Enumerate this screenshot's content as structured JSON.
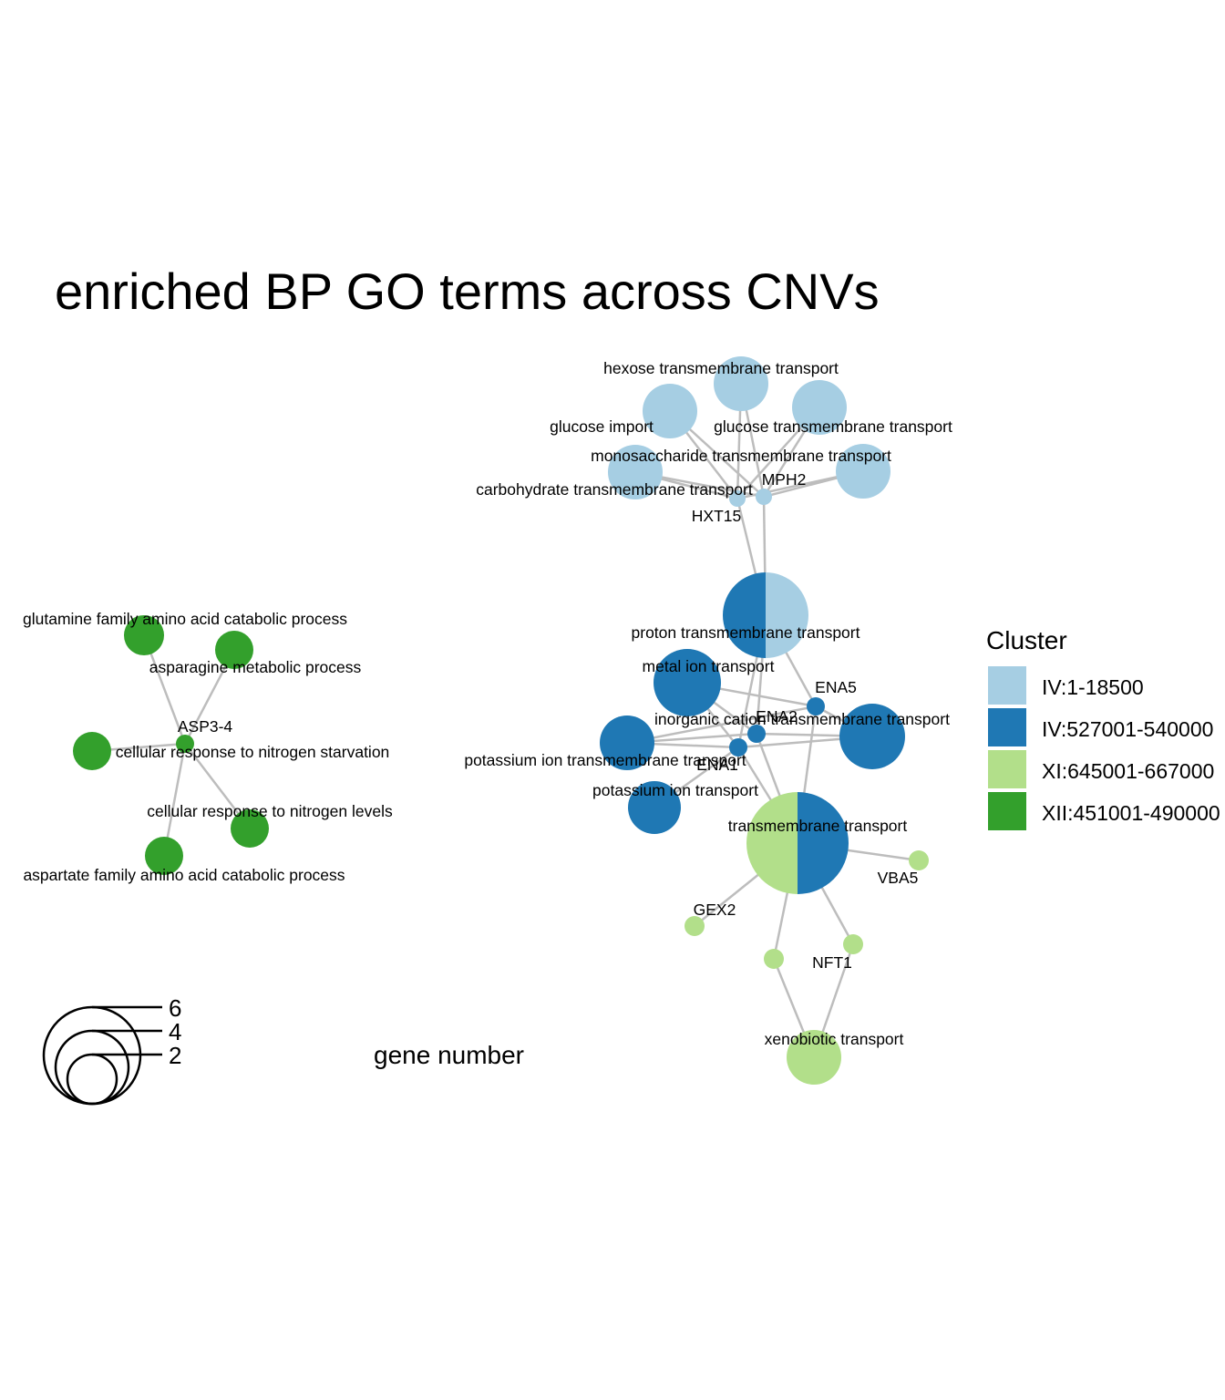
{
  "title": "enriched BP GO terms across CNVs",
  "edge_color": "#bdbdbd",
  "legend": {
    "title": "Cluster",
    "entries": [
      {
        "key": "c1",
        "label": "IV:1-18500",
        "color": "#a6cee3"
      },
      {
        "key": "c2",
        "label": "IV:527001-540000",
        "color": "#1f78b4"
      },
      {
        "key": "c3",
        "label": "XI:645001-667000",
        "color": "#b2df8a"
      },
      {
        "key": "c4",
        "label": "XII:451001-490000",
        "color": "#33a02c"
      }
    ]
  },
  "size_legend": {
    "title": "gene number",
    "values": [
      "6",
      "4",
      "2"
    ]
  },
  "nodes": [
    {
      "id": "hexose",
      "label": "hexose transmembrane transport",
      "kind": "term",
      "clusters": [
        "c1"
      ]
    },
    {
      "id": "glucose_import",
      "label": "glucose import",
      "kind": "term",
      "clusters": [
        "c1"
      ]
    },
    {
      "id": "glucose_tm",
      "label": "glucose transmembrane transport",
      "kind": "term",
      "clusters": [
        "c1"
      ]
    },
    {
      "id": "mono_tm",
      "label": "monosaccharide transmembrane transport",
      "kind": "term",
      "clusters": [
        "c1"
      ]
    },
    {
      "id": "carb_tm",
      "label": "carbohydrate transmembrane transport",
      "kind": "term",
      "clusters": [
        "c1"
      ]
    },
    {
      "id": "HXT15",
      "label": "HXT15",
      "kind": "gene",
      "clusters": [
        "c1"
      ]
    },
    {
      "id": "MPH2",
      "label": "MPH2",
      "kind": "gene",
      "clusters": [
        "c1"
      ]
    },
    {
      "id": "proton",
      "label": "proton transmembrane transport",
      "kind": "term",
      "clusters": [
        "c2",
        "c1"
      ]
    },
    {
      "id": "metal",
      "label": "metal ion transport",
      "kind": "term",
      "clusters": [
        "c2"
      ]
    },
    {
      "id": "ENA5",
      "label": "ENA5",
      "kind": "gene",
      "clusters": [
        "c2"
      ]
    },
    {
      "id": "ENA2",
      "label": "ENA2",
      "kind": "gene",
      "clusters": [
        "c2"
      ]
    },
    {
      "id": "inorganic",
      "label": "inorganic cation transmembrane transport",
      "kind": "term",
      "clusters": [
        "c2"
      ]
    },
    {
      "id": "potassium_tm",
      "label": "potassium ion transmembrane transport",
      "kind": "term",
      "clusters": [
        "c2"
      ]
    },
    {
      "id": "ENA1",
      "label": "ENA1",
      "kind": "gene",
      "clusters": [
        "c2"
      ]
    },
    {
      "id": "potassium",
      "label": "potassium ion transport",
      "kind": "term",
      "clusters": [
        "c2"
      ]
    },
    {
      "id": "transmembrane",
      "label": "transmembrane transport",
      "kind": "term",
      "clusters": [
        "c3",
        "c2"
      ]
    },
    {
      "id": "VBA5",
      "label": "VBA5",
      "kind": "gene",
      "clusters": [
        "c3"
      ]
    },
    {
      "id": "GEX2",
      "label": "GEX2",
      "kind": "gene",
      "clusters": [
        "c3"
      ]
    },
    {
      "id": "NFT1",
      "label": "NFT1",
      "kind": "gene",
      "clusters": [
        "c3"
      ]
    },
    {
      "id": "gene_x",
      "label": "",
      "kind": "gene",
      "clusters": [
        "c3"
      ]
    },
    {
      "id": "xenobiotic",
      "label": "xenobiotic transport",
      "kind": "term",
      "clusters": [
        "c3"
      ]
    },
    {
      "id": "glutamine",
      "label": "glutamine family amino acid catabolic process",
      "kind": "term",
      "clusters": [
        "c4"
      ]
    },
    {
      "id": "asparagine",
      "label": "asparagine metabolic process",
      "kind": "term",
      "clusters": [
        "c4"
      ]
    },
    {
      "id": "ASP34",
      "label": "ASP3-4",
      "kind": "gene",
      "clusters": [
        "c4"
      ]
    },
    {
      "id": "starvation",
      "label": "cellular response to nitrogen starvation",
      "kind": "term",
      "clusters": [
        "c4"
      ]
    },
    {
      "id": "levels",
      "label": "cellular response to nitrogen levels",
      "kind": "term",
      "clusters": [
        "c4"
      ]
    },
    {
      "id": "aspartate",
      "label": "aspartate family amino acid catabolic process",
      "kind": "term",
      "clusters": [
        "c4"
      ]
    }
  ],
  "edges": [
    [
      "hexose",
      "HXT15"
    ],
    [
      "hexose",
      "MPH2"
    ],
    [
      "glucose_import",
      "HXT15"
    ],
    [
      "glucose_import",
      "MPH2"
    ],
    [
      "glucose_tm",
      "HXT15"
    ],
    [
      "glucose_tm",
      "MPH2"
    ],
    [
      "mono_tm",
      "HXT15"
    ],
    [
      "mono_tm",
      "MPH2"
    ],
    [
      "carb_tm",
      "HXT15"
    ],
    [
      "carb_tm",
      "MPH2"
    ],
    [
      "proton",
      "HXT15"
    ],
    [
      "proton",
      "MPH2"
    ],
    [
      "proton",
      "ENA5"
    ],
    [
      "proton",
      "ENA2"
    ],
    [
      "proton",
      "ENA1"
    ],
    [
      "metal",
      "ENA5"
    ],
    [
      "metal",
      "ENA2"
    ],
    [
      "metal",
      "ENA1"
    ],
    [
      "inorganic",
      "ENA5"
    ],
    [
      "inorganic",
      "ENA2"
    ],
    [
      "inorganic",
      "ENA1"
    ],
    [
      "potassium_tm",
      "ENA5"
    ],
    [
      "potassium_tm",
      "ENA2"
    ],
    [
      "potassium_tm",
      "ENA1"
    ],
    [
      "potassium",
      "ENA1"
    ],
    [
      "transmembrane",
      "ENA5"
    ],
    [
      "transmembrane",
      "ENA2"
    ],
    [
      "transmembrane",
      "ENA1"
    ],
    [
      "transmembrane",
      "VBA5"
    ],
    [
      "transmembrane",
      "GEX2"
    ],
    [
      "transmembrane",
      "NFT1"
    ],
    [
      "transmembrane",
      "gene_x"
    ],
    [
      "xenobiotic",
      "NFT1"
    ],
    [
      "xenobiotic",
      "gene_x"
    ],
    [
      "glutamine",
      "ASP34"
    ],
    [
      "asparagine",
      "ASP34"
    ],
    [
      "starvation",
      "ASP34"
    ],
    [
      "levels",
      "ASP34"
    ],
    [
      "aspartate",
      "ASP34"
    ]
  ]
}
